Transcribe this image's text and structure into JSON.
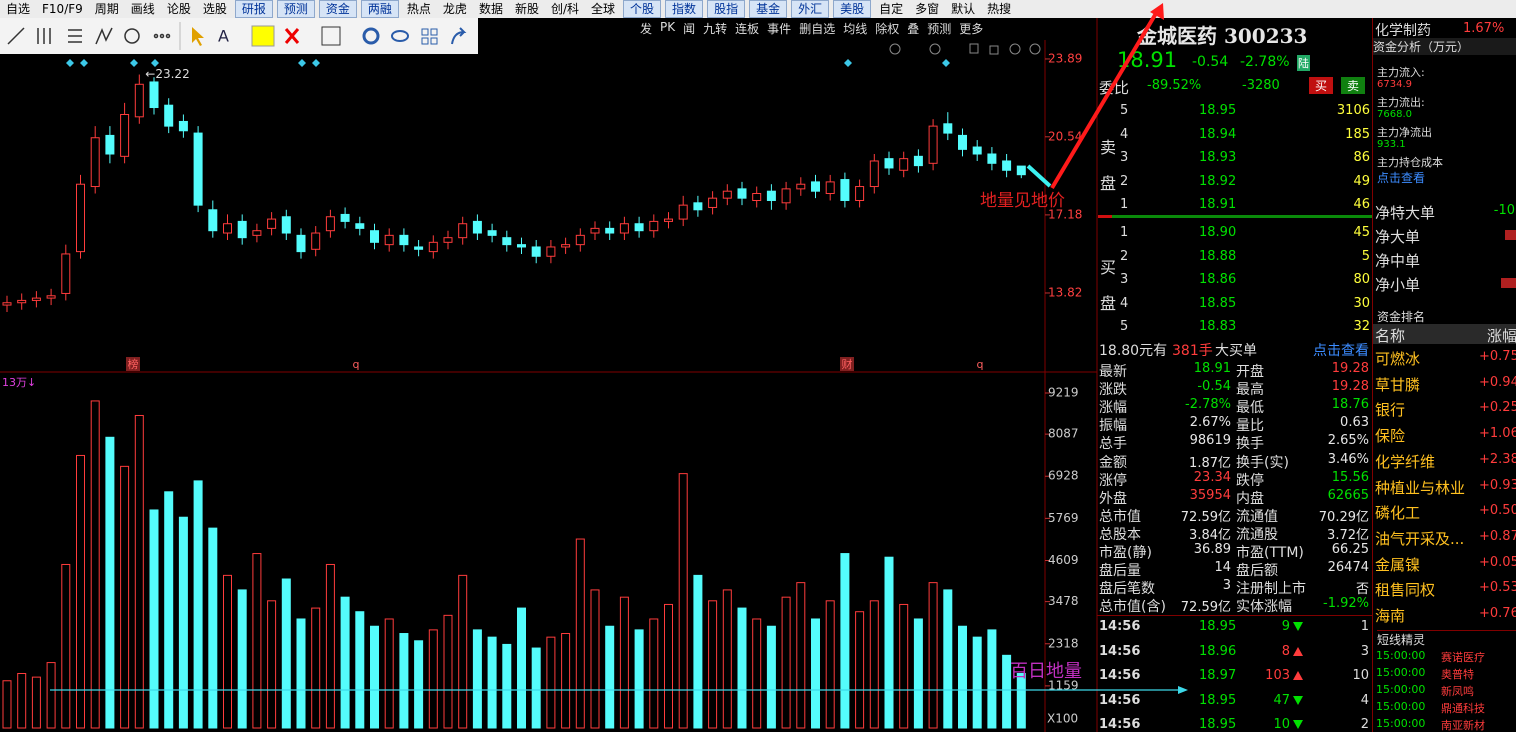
{
  "menu": [
    {
      "text": "自选",
      "tab": false
    },
    {
      "text": "F10/F9",
      "tab": false
    },
    {
      "text": "周期",
      "tab": false
    },
    {
      "text": "画线",
      "tab": false
    },
    {
      "text": "论股",
      "tab": false
    },
    {
      "text": "选股",
      "tab": false
    },
    {
      "text": "研报",
      "tab": true
    },
    {
      "text": "预测",
      "tab": true
    },
    {
      "text": "资金",
      "tab": true
    },
    {
      "text": "两融",
      "tab": true
    },
    {
      "text": "热点",
      "tab": false
    },
    {
      "text": "龙虎",
      "tab": false
    },
    {
      "text": "数据",
      "tab": false
    },
    {
      "text": "新股",
      "tab": false
    },
    {
      "text": "创/科",
      "tab": false
    },
    {
      "text": "全球",
      "tab": false
    },
    {
      "text": "个股",
      "tab": true
    },
    {
      "text": "指数",
      "tab": true
    },
    {
      "text": "股指",
      "tab": true
    },
    {
      "text": "基金",
      "tab": true
    },
    {
      "text": "外汇",
      "tab": true
    },
    {
      "text": "美股",
      "tab": true
    },
    {
      "text": "自定",
      "tab": false
    },
    {
      "text": "多窗",
      "tab": false
    },
    {
      "text": "默认",
      "tab": false
    },
    {
      "text": "热搜",
      "tab": false
    }
  ],
  "chart_toolbar": [
    "发",
    "PK",
    "闻",
    "九转",
    "连板",
    "事件",
    "删自选",
    "均线",
    "除权",
    "叠",
    "预测",
    "更多"
  ],
  "price_chart": {
    "type": "candlestick",
    "ylim": [
      10.42,
      24.06
    ],
    "yticks": [
      23.89,
      20.54,
      17.18,
      13.82
    ],
    "open": [
      13.3,
      13.4,
      13.5,
      13.6,
      13.8,
      15.6,
      18.4,
      20.6,
      19.7,
      21.4,
      22.9,
      21.9,
      21.2,
      20.7,
      17.4,
      16.4,
      16.9,
      16.3,
      16.6,
      17.1,
      16.3,
      15.7,
      16.5,
      17.2,
      16.8,
      16.5,
      15.9,
      16.3,
      15.8,
      15.6,
      16.0,
      16.2,
      16.9,
      16.5,
      16.2,
      15.9,
      15.8,
      15.4,
      15.8,
      15.9,
      16.4,
      16.6,
      16.4,
      16.8,
      16.5,
      16.9,
      17.0,
      17.7,
      17.5,
      17.9,
      18.3,
      17.8,
      18.2,
      17.7,
      18.3,
      18.6,
      18.1,
      18.7,
      17.8,
      18.4,
      19.6,
      19.1,
      19.7,
      19.4,
      21.1,
      20.6,
      20.1,
      19.8,
      19.5,
      19.28
    ],
    "high": [
      13.7,
      13.8,
      13.9,
      14.0,
      15.9,
      18.9,
      21.0,
      21.0,
      22.0,
      23.22,
      23.1,
      22.2,
      21.5,
      21.0,
      17.8,
      17.2,
      17.2,
      16.8,
      17.3,
      17.4,
      16.6,
      16.7,
      17.4,
      17.5,
      17.1,
      16.8,
      16.6,
      16.6,
      16.1,
      16.3,
      16.5,
      17.1,
      17.2,
      16.8,
      16.5,
      16.2,
      16.1,
      16.1,
      16.2,
      16.6,
      16.9,
      16.9,
      17.1,
      17.1,
      17.2,
      17.3,
      18.0,
      18.0,
      18.2,
      18.5,
      18.6,
      18.4,
      18.5,
      18.6,
      18.8,
      18.9,
      18.9,
      19.0,
      18.7,
      19.8,
      19.9,
      19.9,
      20.0,
      21.3,
      21.6,
      20.9,
      20.4,
      20.1,
      19.8,
      19.28
    ],
    "low": [
      13.0,
      13.1,
      13.2,
      13.3,
      13.5,
      15.3,
      18.1,
      19.4,
      19.4,
      21.1,
      21.5,
      20.7,
      20.5,
      17.3,
      16.2,
      16.1,
      15.9,
      16.0,
      16.3,
      16.1,
      15.3,
      15.4,
      16.2,
      16.6,
      16.3,
      15.7,
      15.6,
      15.6,
      15.4,
      15.3,
      15.7,
      15.9,
      16.1,
      16.0,
      15.6,
      15.5,
      15.1,
      15.1,
      15.5,
      15.6,
      16.1,
      16.1,
      16.1,
      16.2,
      16.2,
      16.6,
      16.7,
      17.1,
      17.2,
      17.6,
      17.6,
      17.5,
      17.4,
      17.4,
      18.0,
      17.9,
      17.8,
      17.5,
      17.5,
      18.1,
      18.9,
      18.8,
      19.0,
      19.1,
      20.4,
      19.7,
      19.5,
      19.1,
      18.8,
      18.76
    ],
    "close": [
      13.4,
      13.5,
      13.6,
      13.7,
      15.5,
      18.5,
      20.5,
      19.8,
      21.5,
      22.8,
      21.8,
      21.0,
      20.8,
      17.6,
      16.5,
      16.8,
      16.2,
      16.5,
      17.0,
      16.4,
      15.6,
      16.4,
      17.1,
      16.9,
      16.6,
      16.0,
      16.3,
      15.9,
      15.7,
      16.0,
      16.2,
      16.8,
      16.4,
      16.3,
      15.9,
      15.8,
      15.4,
      15.8,
      15.9,
      16.3,
      16.6,
      16.4,
      16.8,
      16.5,
      16.9,
      17.0,
      17.6,
      17.4,
      17.9,
      18.2,
      17.9,
      18.1,
      17.8,
      18.3,
      18.5,
      18.2,
      18.6,
      17.8,
      18.4,
      19.5,
      19.2,
      19.6,
      19.3,
      21.0,
      20.7,
      20.0,
      19.8,
      19.4,
      19.1,
      18.91
    ],
    "high_label": "←23.22",
    "annotation": "地量见地价",
    "event_marks": [
      "榜",
      "q",
      "财",
      "q"
    ]
  },
  "volume_chart": {
    "type": "bar",
    "unit_label": "13万↓",
    "axis_unit": "X100",
    "ylim": [
      0,
      9714
    ],
    "yticks": [
      9219,
      8087,
      6928,
      5769,
      4609,
      3478,
      2318,
      1159
    ],
    "values": [
      1300,
      1500,
      1400,
      1800,
      4500,
      7500,
      9000,
      8000,
      7200,
      8600,
      6000,
      6500,
      5800,
      6800,
      5500,
      4200,
      3800,
      4800,
      3500,
      4100,
      3000,
      3300,
      4500,
      3600,
      3200,
      2800,
      3000,
      2600,
      2400,
      2700,
      3100,
      4200,
      2700,
      2500,
      2300,
      3300,
      2200,
      2500,
      2600,
      5200,
      3800,
      2800,
      3600,
      2700,
      3000,
      3400,
      7000,
      4200,
      3500,
      3800,
      3300,
      3000,
      2800,
      3600,
      4000,
      3000,
      3500,
      4800,
      3200,
      3500,
      4700,
      3400,
      3000,
      4000,
      3800,
      2800,
      2500,
      2700,
      2000,
      1500
    ],
    "annotation": "百日地量"
  },
  "quote": {
    "name": "金城医药 300233",
    "price": "18.91",
    "change": "-0.54",
    "pct": "-2.78%",
    "tag": "陆",
    "weibi_label": "委比",
    "weibi": "-89.52%",
    "weicha": "-3280",
    "buy": "买",
    "sell": "卖",
    "sell_side": "卖盘",
    "buy_side": "买盘",
    "asks": [
      [
        "5",
        "18.95",
        "3106"
      ],
      [
        "4",
        "18.94",
        "185"
      ],
      [
        "3",
        "18.93",
        "86"
      ],
      [
        "2",
        "18.92",
        "49"
      ],
      [
        "1",
        "18.91",
        "46"
      ]
    ],
    "bids": [
      [
        "1",
        "18.90",
        "45"
      ],
      [
        "2",
        "18.88",
        "5"
      ],
      [
        "3",
        "18.86",
        "80"
      ],
      [
        "4",
        "18.85",
        "30"
      ],
      [
        "5",
        "18.83",
        "32"
      ]
    ],
    "big_order": [
      "18.80元有",
      "381手",
      "大买单",
      "点击查看"
    ],
    "stats": [
      {
        "cells": [
          "最新",
          "18.91",
          "开盘",
          "19.28"
        ],
        "colors": [
          "g",
          "r"
        ]
      },
      {
        "cells": [
          "涨跌",
          "-0.54",
          "最高",
          "19.28"
        ],
        "colors": [
          "g",
          "r"
        ]
      },
      {
        "cells": [
          "涨幅",
          "-2.78%",
          "最低",
          "18.76"
        ],
        "colors": [
          "g",
          "g"
        ]
      },
      {
        "cells": [
          "振幅",
          "2.67%",
          "量比",
          "0.63"
        ],
        "colors": [
          "w",
          "w"
        ]
      },
      {
        "cells": [
          "总手",
          "98619",
          "换手",
          "2.65%"
        ],
        "colors": [
          "w",
          "w"
        ]
      },
      {
        "cells": [
          "金额",
          "1.87亿",
          "换手(实)",
          "3.46%"
        ],
        "colors": [
          "w",
          "w"
        ]
      },
      {
        "cells": [
          "涨停",
          "23.34",
          "跌停",
          "15.56"
        ],
        "colors": [
          "r",
          "g"
        ]
      },
      {
        "cells": [
          "外盘",
          "35954",
          "内盘",
          "62665"
        ],
        "colors": [
          "r",
          "g"
        ]
      },
      {
        "cells": [
          "总市值",
          "72.59亿",
          "流通值",
          "70.29亿"
        ],
        "colors": [
          "w",
          "w"
        ]
      },
      {
        "cells": [
          "总股本",
          "3.84亿",
          "流通股",
          "3.72亿"
        ],
        "colors": [
          "w",
          "w"
        ]
      },
      {
        "cells": [
          "市盈(静)",
          "36.89",
          "市盈(TTM)",
          "66.25"
        ],
        "colors": [
          "w",
          "w"
        ]
      },
      {
        "cells": [
          "盘后量",
          "14",
          "盘后额",
          "26474"
        ],
        "colors": [
          "w",
          "w"
        ]
      },
      {
        "cells": [
          "盘后笔数",
          "3",
          "注册制上市",
          "否"
        ],
        "colors": [
          "w",
          "w"
        ]
      },
      {
        "cells": [
          "总市值(含)",
          "72.59亿",
          "实体涨幅",
          "-1.92%"
        ],
        "colors": [
          "w",
          "g"
        ]
      }
    ],
    "ticks": [
      {
        "cells": [
          "14:56",
          "18.95",
          "9",
          "1"
        ],
        "dir": "down"
      },
      {
        "cells": [
          "14:56",
          "18.96",
          "8",
          "3"
        ],
        "dir": "up"
      },
      {
        "cells": [
          "14:56",
          "18.97",
          "103",
          "10"
        ],
        "dir": "up"
      },
      {
        "cells": [
          "14:56",
          "18.95",
          "47",
          "4"
        ],
        "dir": "down"
      },
      {
        "cells": [
          "14:56",
          "18.95",
          "10",
          "2"
        ],
        "dir": "down"
      }
    ]
  },
  "side": {
    "sector": "化学制药",
    "sector_pct": "1.67%",
    "fund_title": "资金分析（万元）",
    "fund": [
      [
        "主力流入:",
        "6734.9",
        "r"
      ],
      [
        "主力流出:",
        "7668.0",
        "g"
      ],
      [
        "主力净流出",
        "933.1",
        "g"
      ],
      [
        "主力持仓成本",
        "点击查看",
        "b"
      ]
    ],
    "net": [
      [
        "净特大单",
        "-10"
      ],
      [
        "净大单",
        ""
      ],
      [
        "净中单",
        ""
      ],
      [
        "净小单",
        ""
      ]
    ],
    "rank_title": "资金排名",
    "rank_head": [
      "名称",
      "涨幅"
    ],
    "rank": [
      [
        "可燃冰",
        "+0.75"
      ],
      [
        "草甘膦",
        "+0.94"
      ],
      [
        "银行",
        "+0.25"
      ],
      [
        "保险",
        "+1.06"
      ],
      [
        "化学纤维",
        "+2.38"
      ],
      [
        "种植业与林业",
        "+0.93"
      ],
      [
        "磷化工",
        "+0.50"
      ],
      [
        "油气开采及...",
        "+0.87"
      ],
      [
        "金属镍",
        "+0.05"
      ],
      [
        "租售同权",
        "+0.53"
      ],
      [
        "海南",
        "+0.76"
      ]
    ],
    "sprite_title": "短线精灵",
    "sprite": [
      [
        "15:00:00",
        "赛诺医疗"
      ],
      [
        "15:00:00",
        "奥普特"
      ],
      [
        "15:00:00",
        "新凤鸣"
      ],
      [
        "15:00:00",
        "鼎通科技"
      ],
      [
        "15:00:00",
        "南亚新材"
      ]
    ]
  }
}
